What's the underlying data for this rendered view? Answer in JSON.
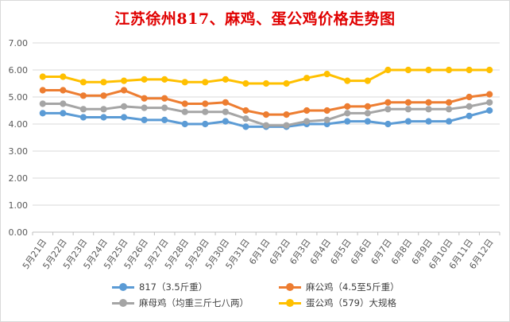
{
  "chart_data": {
    "type": "line",
    "title": "江苏徐州817、麻鸡、蛋公鸡价格走势图",
    "categories": [
      "5月21日",
      "5月22日",
      "5月23日",
      "5月24日",
      "5月25日",
      "5月26日",
      "5月27日",
      "5月28日",
      "5月29日",
      "5月30日",
      "5月31日",
      "6月1日",
      "6月2日",
      "6月3日",
      "6月4日",
      "6月5日",
      "6月6日",
      "6月7日",
      "6月8日",
      "6月9日",
      "6月10日",
      "6月11日",
      "6月12日"
    ],
    "ylim": [
      0,
      7
    ],
    "yticks": [
      "0.00",
      "1.00",
      "2.00",
      "3.00",
      "4.00",
      "5.00",
      "6.00",
      "7.00"
    ],
    "grid": true,
    "legend_position": "bottom",
    "series": [
      {
        "name": "817（3.5斤重）",
        "color": "#5b9bd5",
        "values": [
          4.4,
          4.4,
          4.25,
          4.25,
          4.25,
          4.15,
          4.15,
          4.0,
          4.0,
          4.1,
          3.9,
          3.9,
          3.9,
          4.0,
          4.0,
          4.1,
          4.1,
          4.0,
          4.1,
          4.1,
          4.1,
          4.3,
          4.5
        ]
      },
      {
        "name": "麻公鸡（4.5至5斤重）",
        "color": "#ed7d31",
        "values": [
          5.25,
          5.25,
          5.05,
          5.05,
          5.25,
          4.95,
          4.95,
          4.75,
          4.75,
          4.8,
          4.5,
          4.35,
          4.35,
          4.5,
          4.5,
          4.65,
          4.65,
          4.8,
          4.8,
          4.8,
          4.8,
          5.0,
          5.1
        ]
      },
      {
        "name": "麻母鸡（均重三斤七八两）",
        "color": "#a5a5a5",
        "values": [
          4.75,
          4.75,
          4.55,
          4.55,
          4.65,
          4.6,
          4.6,
          4.45,
          4.45,
          4.45,
          4.2,
          3.95,
          3.95,
          4.1,
          4.15,
          4.4,
          4.4,
          4.55,
          4.55,
          4.55,
          4.55,
          4.65,
          4.8
        ]
      },
      {
        "name": "蛋公鸡（579）大规格",
        "color": "#ffc000",
        "values": [
          5.75,
          5.75,
          5.55,
          5.55,
          5.6,
          5.65,
          5.65,
          5.55,
          5.55,
          5.65,
          5.5,
          5.5,
          5.5,
          5.7,
          5.85,
          5.6,
          5.6,
          6.0,
          6.0,
          6.0,
          6.0,
          6.0,
          6.0
        ]
      }
    ]
  }
}
